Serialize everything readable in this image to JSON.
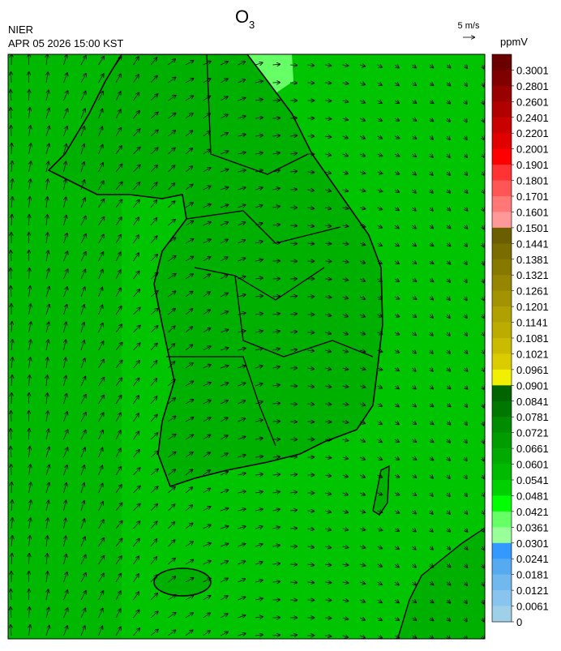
{
  "header": {
    "title": "O",
    "title_subscript": "3",
    "agency": "NIER",
    "datetime": "APR 05 2026 15:00 KST",
    "vector_scale": "5 m/s"
  },
  "colorbar": {
    "unit": "ppmV",
    "ticks": [
      0.3001,
      0.2801,
      0.2601,
      0.2401,
      0.2201,
      0.2001,
      0.1901,
      0.1801,
      0.1701,
      0.1601,
      0.1501,
      0.1441,
      0.1381,
      0.1321,
      0.1261,
      0.1201,
      0.1141,
      0.1081,
      0.1021,
      0.0961,
      0.0901,
      0.0841,
      0.0781,
      0.0721,
      0.0661,
      0.0601,
      0.0541,
      0.0481,
      0.0421,
      0.0361,
      0.0301,
      0.0241,
      0.0181,
      0.0121,
      0.0061,
      0
    ],
    "colors": [
      "#6b0000",
      "#800000",
      "#990000",
      "#b00000",
      "#c80000",
      "#e00000",
      "#ff0000",
      "#ff3333",
      "#ff5555",
      "#ff7777",
      "#ff9999",
      "#6b5e00",
      "#7a6c00",
      "#877800",
      "#958500",
      "#a39300",
      "#b0a000",
      "#bdac00",
      "#cbbb00",
      "#dbcc00",
      "#f0f000",
      "#006400",
      "#007800",
      "#008c00",
      "#009c00",
      "#00aa00",
      "#00ba00",
      "#00d000",
      "#00ff00",
      "#66ff66",
      "#99ff99",
      "#3399ff",
      "#55aaf0",
      "#70b8ee",
      "#88c4ee",
      "#a0cfe8"
    ]
  }
}
